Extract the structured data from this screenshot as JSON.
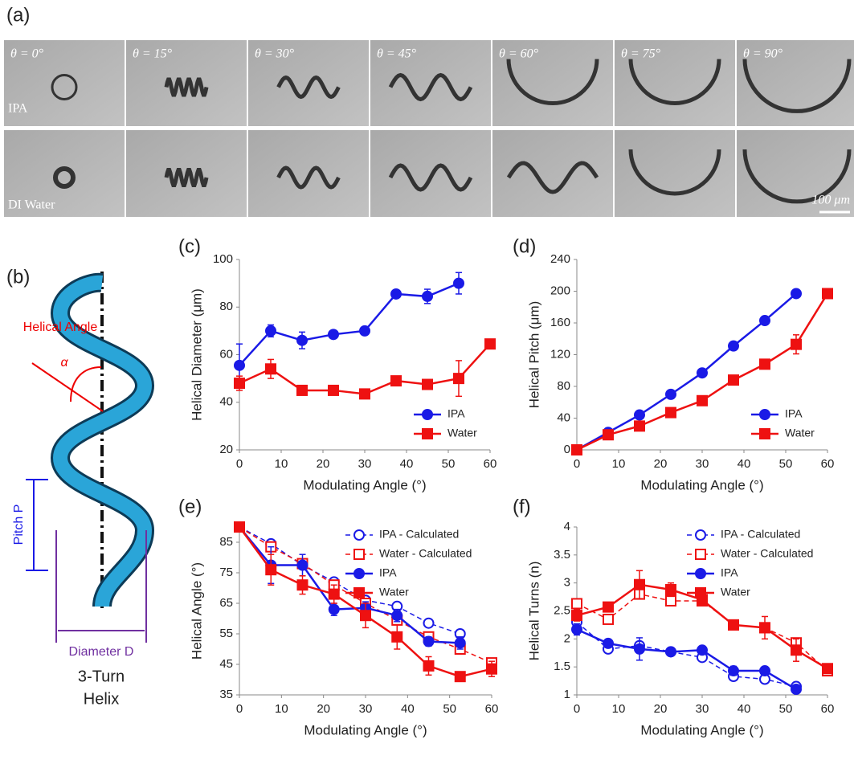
{
  "panel_labels": [
    "(a)",
    "(b)",
    "(c)",
    "(d)",
    "(e)",
    "(f)"
  ],
  "photos": {
    "angles": [
      "θ = 0°",
      "θ = 15°",
      "θ = 30°",
      "θ = 45°",
      "θ = 60°",
      "θ = 75°",
      "θ = 90°"
    ],
    "rows": [
      "IPA",
      "DI Water"
    ],
    "scale": "100 μm"
  },
  "diagram": {
    "helical_angle": "Helical Angle",
    "alpha": "α",
    "pitch": "Pitch P",
    "diameter": "Diameter D",
    "caption": [
      "3-Turn",
      "Helix"
    ]
  },
  "chart_data": [
    {
      "type": "line",
      "x_label": "Modulating Angle (°)",
      "y_label": "Helical Diameter (μm)",
      "x": [
        0,
        7.5,
        15,
        22.5,
        30,
        37.5,
        45,
        52.5,
        60
      ],
      "xlim": [
        0,
        60
      ],
      "xticks": [
        0,
        10,
        20,
        30,
        40,
        50,
        60
      ],
      "ylim": [
        20,
        100
      ],
      "yticks": [
        20,
        40,
        60,
        80,
        100
      ],
      "legend": "lower right",
      "series": [
        {
          "name": "IPA",
          "color": "#1a1ae6",
          "marker": "circle",
          "filled": true,
          "dashed": false,
          "values": [
            55.5,
            70,
            66,
            68.5,
            70,
            85.5,
            84.5,
            90,
            null
          ],
          "errors": [
            9,
            2.5,
            3.5,
            1,
            1,
            1,
            3,
            4.5,
            null
          ]
        },
        {
          "name": "Water",
          "color": "#ee1111",
          "marker": "square",
          "filled": true,
          "dashed": false,
          "values": [
            48,
            54,
            45,
            45,
            43.5,
            49,
            47.5,
            50,
            64.5
          ],
          "errors": [
            3,
            4,
            1,
            1.5,
            1,
            1,
            1,
            7.5,
            1
          ]
        }
      ]
    },
    {
      "type": "line",
      "x_label": "Modulating Angle (°)",
      "y_label": "Helical Pitch (μm)",
      "x": [
        0,
        7.5,
        15,
        22.5,
        30,
        37.5,
        45,
        52.5,
        60
      ],
      "xlim": [
        0,
        60
      ],
      "xticks": [
        0,
        10,
        20,
        30,
        40,
        50,
        60
      ],
      "ylim": [
        0,
        240
      ],
      "yticks": [
        0,
        40,
        80,
        120,
        160,
        200,
        240
      ],
      "legend": "lower right",
      "series": [
        {
          "name": "IPA",
          "color": "#1a1ae6",
          "marker": "circle",
          "filled": true,
          "dashed": false,
          "values": [
            0,
            22,
            44,
            70,
            97,
            131,
            163,
            197,
            null
          ],
          "errors": [
            0,
            1,
            1,
            1,
            1,
            1,
            1,
            1,
            null
          ]
        },
        {
          "name": "Water",
          "color": "#ee1111",
          "marker": "square",
          "filled": true,
          "dashed": false,
          "values": [
            0,
            19,
            30,
            47,
            62,
            88,
            108,
            133,
            197
          ],
          "errors": [
            0,
            1,
            1,
            1,
            1,
            1,
            1,
            12,
            1
          ]
        }
      ]
    },
    {
      "type": "line",
      "x_label": "Modulating Angle (°)",
      "y_label": "Helical Angle (°)",
      "x": [
        0,
        7.5,
        15,
        22.5,
        30,
        37.5,
        45,
        52.5,
        60
      ],
      "xlim": [
        0,
        60
      ],
      "xticks": [
        0,
        10,
        20,
        30,
        40,
        50,
        60
      ],
      "ylim": [
        35,
        90
      ],
      "yticks": [
        35,
        45,
        55,
        65,
        75,
        85
      ],
      "legend": "upper right",
      "series": [
        {
          "name": "IPA - Calculated",
          "color": "#1a1ae6",
          "marker": "circle",
          "filled": false,
          "dashed": true,
          "values": [
            90,
            84.5,
            77.5,
            72,
            66,
            64,
            58.5,
            55,
            null
          ]
        },
        {
          "name": "Water - Calculated",
          "color": "#ee1111",
          "marker": "square",
          "filled": false,
          "dashed": true,
          "values": [
            90,
            83.5,
            78,
            71,
            65,
            59.5,
            54,
            50,
            45.5
          ]
        },
        {
          "name": "IPA",
          "color": "#1a1ae6",
          "marker": "circle",
          "filled": true,
          "dashed": false,
          "values": [
            90,
            77.5,
            77.5,
            63,
            63.5,
            61,
            52.5,
            52,
            null
          ],
          "errors": [
            0,
            6,
            3.5,
            2,
            2,
            2,
            1.5,
            2,
            null
          ]
        },
        {
          "name": "Water",
          "color": "#ee1111",
          "marker": "square",
          "filled": true,
          "dashed": false,
          "values": [
            90,
            76,
            71,
            68,
            61,
            54,
            44.5,
            41,
            43.5
          ],
          "errors": [
            0,
            5,
            3,
            3,
            4,
            4,
            3,
            1.5,
            2.5
          ]
        }
      ]
    },
    {
      "type": "line",
      "x_label": "Modulating Angle (°)",
      "y_label": "Helical Turns (n)",
      "x": [
        0,
        7.5,
        15,
        22.5,
        30,
        37.5,
        45,
        52.5,
        60
      ],
      "xlim": [
        0,
        60
      ],
      "xticks": [
        0,
        10,
        20,
        30,
        40,
        50,
        60
      ],
      "ylim": [
        1,
        4
      ],
      "yticks": [
        1,
        1.5,
        2,
        2.5,
        3,
        3.5,
        4
      ],
      "legend": "upper right",
      "series": [
        {
          "name": "IPA - Calculated",
          "color": "#1a1ae6",
          "marker": "circle",
          "filled": false,
          "dashed": true,
          "values": [
            2.3,
            1.82,
            1.88,
            1.77,
            1.67,
            1.33,
            1.28,
            1.15,
            null
          ]
        },
        {
          "name": "Water - Calculated",
          "color": "#ee1111",
          "marker": "square",
          "filled": false,
          "dashed": true,
          "values": [
            2.63,
            2.35,
            2.8,
            2.68,
            2.68,
            2.25,
            2.2,
            1.93,
            1.43
          ]
        },
        {
          "name": "IPA",
          "color": "#1a1ae6",
          "marker": "circle",
          "filled": true,
          "dashed": false,
          "values": [
            2.17,
            1.92,
            1.82,
            1.77,
            1.8,
            1.43,
            1.43,
            1.1,
            null
          ],
          "errors": [
            0.1,
            0.05,
            0.2,
            0.05,
            0.05,
            0.08,
            0.05,
            0.05,
            null
          ]
        },
        {
          "name": "Water",
          "color": "#ee1111",
          "marker": "square",
          "filled": true,
          "dashed": false,
          "values": [
            2.42,
            2.57,
            2.97,
            2.88,
            2.7,
            2.25,
            2.2,
            1.8,
            1.47
          ],
          "errors": [
            0.1,
            0.08,
            0.25,
            0.12,
            0.07,
            0.05,
            0.2,
            0.2,
            0.05
          ]
        }
      ]
    }
  ]
}
